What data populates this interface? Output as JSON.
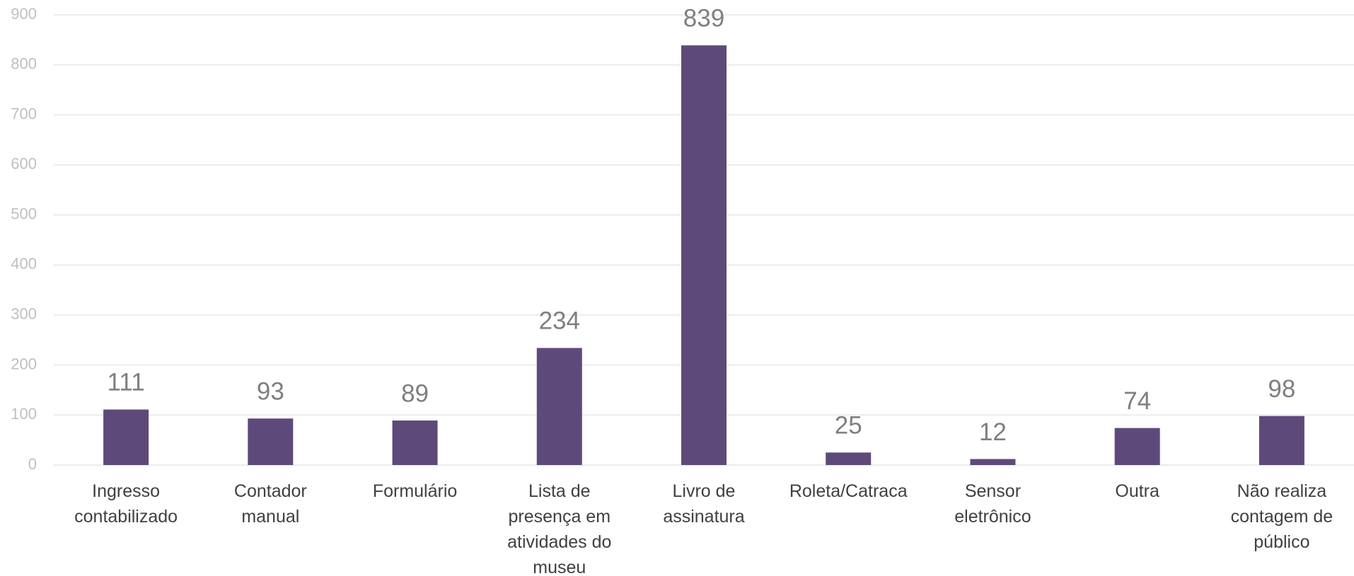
{
  "chart_data": {
    "type": "bar",
    "categories": [
      "Ingresso contabilizado",
      "Contador manual",
      "Formulário",
      "Lista de presença em atividades do museu",
      "Livro de assinatura",
      "Roleta/Catraca",
      "Sensor eletrônico",
      "Outra",
      "Não realiza contagem de público"
    ],
    "values": [
      111,
      93,
      89,
      234,
      839,
      25,
      12,
      74,
      98
    ],
    "color": "#5e4a7a",
    "ylim": [
      0,
      900
    ],
    "yticks": [
      0,
      100,
      200,
      300,
      400,
      500,
      600,
      700,
      800,
      900
    ],
    "grid": true
  }
}
